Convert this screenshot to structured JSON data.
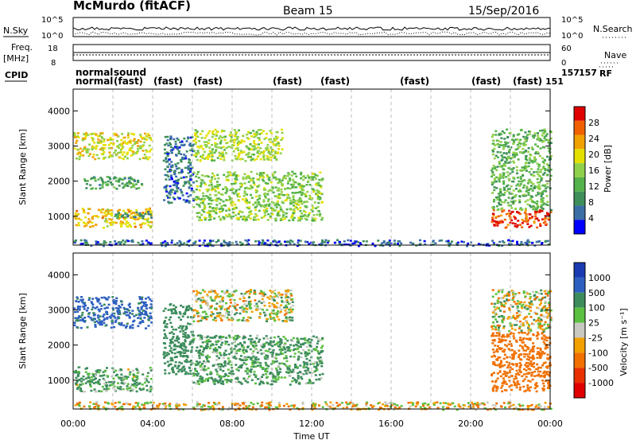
{
  "header": {
    "station": "McMurdo (fitACF)",
    "beam": "Beam 15",
    "date": "15/Sep/2016"
  },
  "top_panels": {
    "nsky_label": "N.Sky",
    "nsky_ticks": [
      "10^5",
      "10^0"
    ],
    "nsearch_label": "N.Search",
    "nsearch_ticks": [
      "10^5",
      "10^0"
    ],
    "freq_label": "Freq.",
    "freq_unit": "[MHz]",
    "freq_ticks": [
      "18",
      "8"
    ],
    "nave_label": "Nave",
    "nave_ticks": [
      "60",
      "0"
    ],
    "cpid_label": "CPID",
    "rf_label": "RF",
    "cpid_mode_labels": [
      "normal",
      "normal",
      "sound",
      "(fast)",
      "(fast)",
      "(fast)",
      "(fast)",
      "(fast)",
      "(fast)",
      "(fast)",
      "(fast)"
    ],
    "cpid_numbers": [
      "157",
      "151",
      "157"
    ]
  },
  "colors": {
    "power": [
      "#0000ff",
      "#3a6ea5",
      "#3e8f5a",
      "#55b24a",
      "#8fd04a",
      "#e3e000",
      "#f0a000",
      "#f06000",
      "#e00000"
    ],
    "velocity": [
      "#1a3bb0",
      "#2d5fc0",
      "#3c8c5c",
      "#5cc040",
      "#c8c8c0",
      "#f2a000",
      "#f07000",
      "#e83000",
      "#e00000"
    ],
    "ground_scatter": "#c8c8c0"
  },
  "chart_data": [
    {
      "type": "heatmap",
      "panel": "power",
      "ylabel": "Slant Range [km]",
      "colorbar_label": "Power [dB]",
      "colorbar_ticks": [
        "4",
        "8",
        "12",
        "16",
        "20",
        "24",
        "28"
      ],
      "colorbar_range": [
        0,
        30
      ],
      "xlim_hours": [
        0,
        24
      ],
      "ylim_km": [
        180,
        4620
      ],
      "yticks": [
        "1000",
        "2000",
        "3000",
        "4000"
      ],
      "scatter_regions": [
        {
          "t0": 0.0,
          "t1": 3.9,
          "r0": 700,
          "r1": 1250,
          "power": 20
        },
        {
          "t0": 0.0,
          "t1": 3.9,
          "r0": 2650,
          "r1": 3400,
          "power": 18
        },
        {
          "t0": 0.5,
          "t1": 3.5,
          "r0": 1800,
          "r1": 2150,
          "power": 10
        },
        {
          "t0": 2.0,
          "t1": 4.0,
          "r0": 950,
          "r1": 1150,
          "power": 8
        },
        {
          "t0": 4.5,
          "t1": 6.0,
          "r0": 1400,
          "r1": 3300,
          "power": 6
        },
        {
          "t0": 6.0,
          "t1": 10.5,
          "r0": 2600,
          "r1": 3500,
          "power": 16
        },
        {
          "t0": 6.0,
          "t1": 12.5,
          "r0": 900,
          "r1": 2300,
          "power": 14
        },
        {
          "t0": 21.0,
          "t1": 24.0,
          "r0": 700,
          "r1": 1200,
          "power": 26
        },
        {
          "t0": 21.0,
          "t1": 24.0,
          "r0": 1200,
          "r1": 3500,
          "power": 12
        },
        {
          "t0": 0.0,
          "t1": 24.0,
          "r0": 180,
          "r1": 350,
          "power": 5
        }
      ]
    },
    {
      "type": "heatmap",
      "panel": "velocity",
      "ylabel": "Slant Range [km]",
      "colorbar_label": "Velocity [m s⁻¹]",
      "colorbar_ticks": [
        "1000",
        "500",
        "100",
        "25",
        "-25",
        "-100",
        "-500",
        "-1000"
      ],
      "colorbar_range": [
        -1000,
        1000
      ],
      "xlim_hours": [
        0,
        24
      ],
      "ylim_km": [
        180,
        4620
      ],
      "yticks": [
        "1000",
        "2000",
        "3000",
        "4000"
      ],
      "xlabel": "Time UT",
      "xticks": [
        "00:00",
        "04:00",
        "08:00",
        "12:00",
        "16:00",
        "20:00",
        "00:00"
      ],
      "scatter_regions": [
        {
          "t0": 0.0,
          "t1": 3.9,
          "r0": 700,
          "r1": 1400,
          "velocity": 120
        },
        {
          "t0": 0.0,
          "t1": 3.9,
          "r0": 2500,
          "r1": 3400,
          "velocity": 600
        },
        {
          "t0": 4.5,
          "t1": 6.0,
          "r0": 1200,
          "r1": 3200,
          "velocity": 300
        },
        {
          "t0": 6.0,
          "t1": 11.0,
          "r0": 2700,
          "r1": 3600,
          "velocity": 10
        },
        {
          "t0": 6.0,
          "t1": 12.5,
          "r0": 900,
          "r1": 2300,
          "velocity": 150
        },
        {
          "t0": 21.0,
          "t1": 24.0,
          "r0": 700,
          "r1": 2400,
          "velocity": -300
        },
        {
          "t0": 21.0,
          "t1": 24.0,
          "r0": 2400,
          "r1": 3600,
          "velocity": 10
        },
        {
          "t0": 0.0,
          "t1": 24.0,
          "r0": 180,
          "r1": 400,
          "velocity": -50
        }
      ]
    }
  ]
}
